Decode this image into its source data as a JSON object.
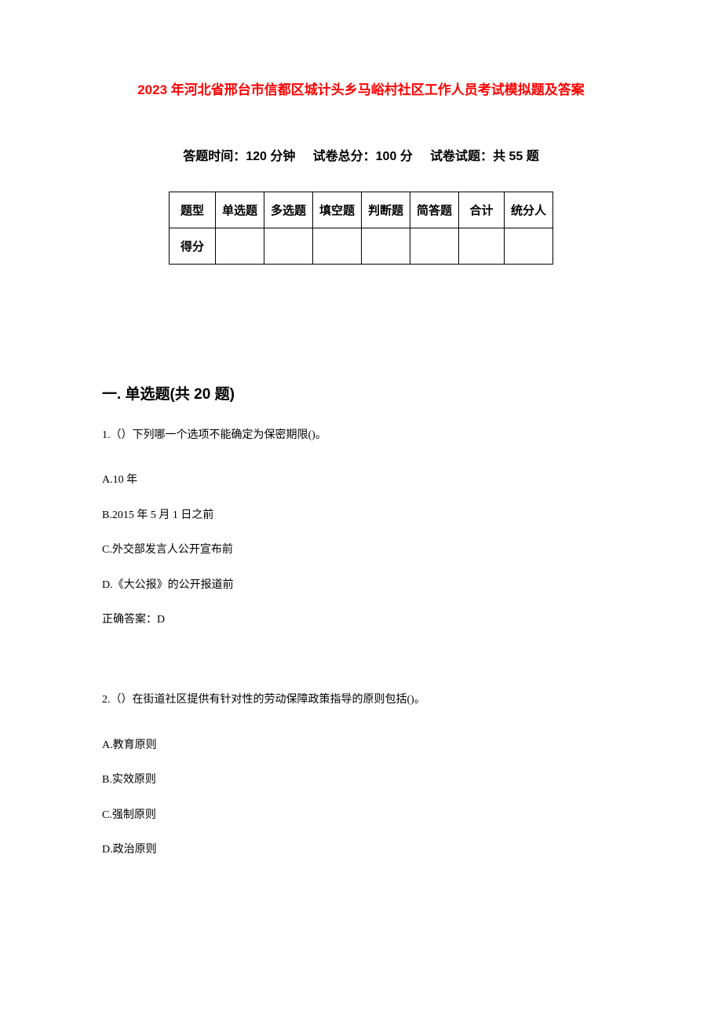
{
  "title": "2023 年河北省邢台市信都区城计头乡马峪村社区工作人员考试模拟题及答案",
  "examInfo": {
    "timeLabel": "答题时间：",
    "timeValue": "120 分钟",
    "totalScoreLabel": "试卷总分：",
    "totalScoreValue": "100 分",
    "questionCountLabel": "试卷试题：",
    "questionCountValue": "共 55 题"
  },
  "scoreTable": {
    "headers": [
      "题型",
      "单选题",
      "多选题",
      "填空题",
      "判断题",
      "简答题",
      "合计",
      "统分人"
    ],
    "rowLabel": "得分"
  },
  "section1": {
    "header": "一. 单选题(共 20 题)",
    "questions": [
      {
        "number": "1.",
        "text": "（）下列哪一个选项不能确定为保密期限()。",
        "options": [
          "A.10 年",
          "B.2015 年 5 月 1 日之前",
          "C.外交部发言人公开宣布前",
          "D.《大公报》的公开报道前"
        ],
        "answer": "正确答案：D"
      },
      {
        "number": "2.",
        "text": "（）在街道社区提供有针对性的劳动保障政策指导的原则包括()。",
        "options": [
          "A.教育原则",
          "B.实效原则",
          "C.强制原则",
          "D.政治原则"
        ]
      }
    ]
  },
  "colors": {
    "titleColor": "#ff0000",
    "textColor": "#000000",
    "backgroundColor": "#ffffff",
    "borderColor": "#000000"
  }
}
